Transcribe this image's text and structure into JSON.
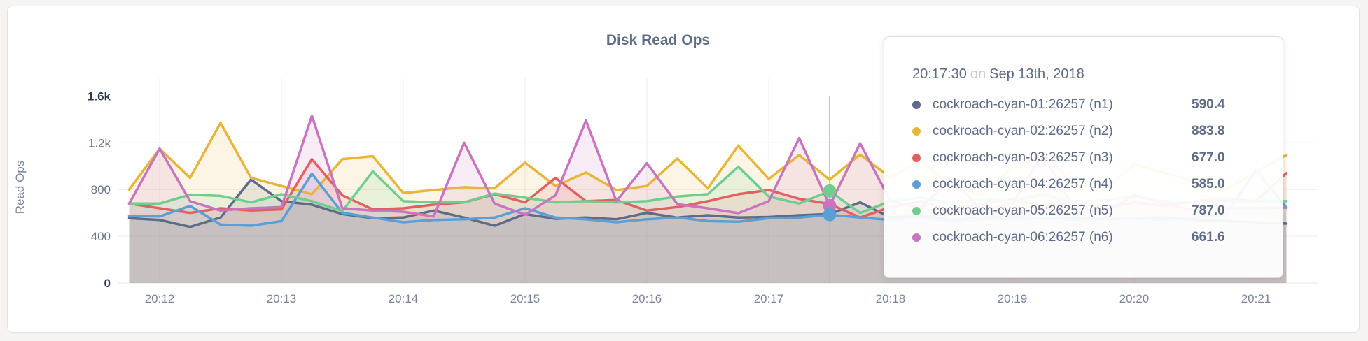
{
  "chart_data": {
    "type": "area",
    "title": "Disk Read Ops",
    "ylabel": "Read Ops",
    "xlabel": "",
    "ylim": [
      0,
      1600
    ],
    "grid": true,
    "legend_position": "tooltip",
    "x_start_time": "20:11:45",
    "x_interval_seconds": 15,
    "x_ticks": [
      "20:12",
      "20:13",
      "20:14",
      "20:15",
      "20:16",
      "20:17",
      "20:18",
      "20:19",
      "20:20",
      "20:21"
    ],
    "y_ticks": [
      {
        "label": "0",
        "value": 0
      },
      {
        "label": "400",
        "value": 400
      },
      {
        "label": "800",
        "value": 800
      },
      {
        "label": "1.2k",
        "value": 1200
      },
      {
        "label": "1.6k",
        "value": 1600
      }
    ],
    "series": [
      {
        "id": "n1",
        "name": "cockroach-cyan-01:26257 (n1)",
        "color": "#5f6c87",
        "values": [
          555,
          540,
          480,
          560,
          885,
          700,
          670,
          590,
          555,
          560,
          620,
          560,
          490,
          590,
          550,
          560,
          545,
          600,
          560,
          580,
          560,
          565,
          580,
          590.4,
          690,
          560,
          580,
          540,
          560,
          570,
          550,
          560,
          545,
          555,
          560,
          540,
          530,
          520,
          508
        ]
      },
      {
        "id": "n2",
        "name": "cockroach-cyan-02:26257 (n2)",
        "color": "#e7b53a",
        "values": [
          800,
          1150,
          900,
          1370,
          900,
          830,
          760,
          1060,
          1085,
          770,
          795,
          820,
          810,
          1030,
          830,
          945,
          795,
          830,
          1065,
          810,
          1175,
          890,
          1095,
          883.8,
          1100,
          900,
          1050,
          820,
          760,
          980,
          1100,
          850,
          790,
          1020,
          940,
          870,
          800,
          950,
          1095
        ]
      },
      {
        "id": "n3",
        "name": "cockroach-cyan-03:26257 (n3)",
        "color": "#e06161",
        "values": [
          680,
          640,
          600,
          640,
          620,
          630,
          1060,
          750,
          630,
          640,
          670,
          690,
          760,
          690,
          900,
          700,
          710,
          620,
          650,
          700,
          760,
          795,
          720,
          677,
          560,
          650,
          700,
          620,
          680,
          720,
          650,
          700,
          640,
          690,
          660,
          700,
          720,
          700,
          940
        ]
      },
      {
        "id": "n4",
        "name": "cockroach-cyan-04:26257 (n4)",
        "color": "#5b9fd6",
        "values": [
          575,
          570,
          660,
          500,
          490,
          530,
          935,
          600,
          560,
          520,
          540,
          545,
          560,
          640,
          560,
          545,
          520,
          545,
          560,
          530,
          525,
          555,
          560,
          585,
          560,
          540,
          560,
          530,
          550,
          545,
          555,
          540,
          560,
          550,
          540,
          560,
          580,
          965,
          645
        ]
      },
      {
        "id": "n5",
        "name": "cockroach-cyan-05:26257 (n5)",
        "color": "#6fce8d",
        "values": [
          680,
          680,
          755,
          745,
          690,
          760,
          700,
          615,
          955,
          700,
          690,
          690,
          765,
          730,
          690,
          700,
          690,
          700,
          740,
          760,
          995,
          740,
          680,
          787,
          600,
          700,
          730,
          680,
          720,
          700,
          760,
          690,
          710,
          740,
          700,
          690,
          700,
          700,
          700
        ]
      },
      {
        "id": "n6",
        "name": "cockroach-cyan-06:26257 (n6)",
        "color": "#c874bf",
        "values": [
          680,
          1150,
          700,
          620,
          640,
          650,
          1430,
          640,
          620,
          610,
          570,
          1200,
          680,
          585,
          750,
          1390,
          700,
          1025,
          675,
          640,
          598,
          700,
          1240,
          661.6,
          1195,
          700,
          640,
          900,
          620,
          680,
          1100,
          650,
          600,
          750,
          680,
          620,
          640,
          640,
          646
        ]
      }
    ]
  },
  "tooltip": {
    "time": "20:17:30",
    "conjunction": "on",
    "date": "Sep 13th, 2018",
    "hover_index": 23,
    "dot_series": [
      "n6",
      "n5",
      "n4"
    ],
    "rows": [
      {
        "series": "n1",
        "label": "cockroach-cyan-01:26257 (n1)",
        "value": "590.4",
        "color": "#5f6c87"
      },
      {
        "series": "n2",
        "label": "cockroach-cyan-02:26257 (n2)",
        "value": "883.8",
        "color": "#e7b53a"
      },
      {
        "series": "n3",
        "label": "cockroach-cyan-03:26257 (n3)",
        "value": "677.0",
        "color": "#e06161"
      },
      {
        "series": "n4",
        "label": "cockroach-cyan-04:26257 (n4)",
        "value": "585.0",
        "color": "#5b9fd6"
      },
      {
        "series": "n5",
        "label": "cockroach-cyan-05:26257 (n5)",
        "value": "787.0",
        "color": "#6fce8d"
      },
      {
        "series": "n6",
        "label": "cockroach-cyan-06:26257 (n6)",
        "value": "661.6",
        "color": "#c874bf"
      }
    ]
  }
}
